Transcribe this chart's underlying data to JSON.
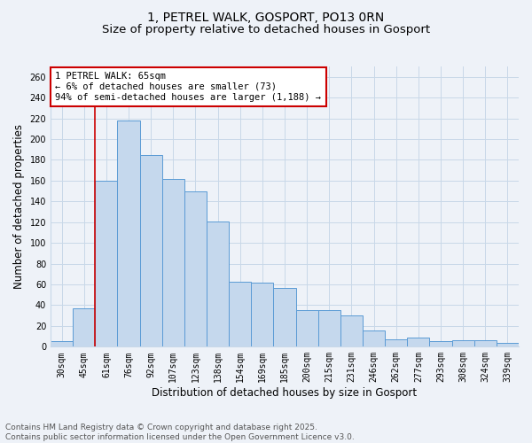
{
  "title": "1, PETREL WALK, GOSPORT, PO13 0RN",
  "subtitle": "Size of property relative to detached houses in Gosport",
  "xlabel": "Distribution of detached houses by size in Gosport",
  "ylabel": "Number of detached properties",
  "categories": [
    "30sqm",
    "45sqm",
    "61sqm",
    "76sqm",
    "92sqm",
    "107sqm",
    "123sqm",
    "138sqm",
    "154sqm",
    "169sqm",
    "185sqm",
    "200sqm",
    "215sqm",
    "231sqm",
    "246sqm",
    "262sqm",
    "277sqm",
    "293sqm",
    "308sqm",
    "324sqm",
    "339sqm"
  ],
  "values": [
    5,
    37,
    160,
    218,
    185,
    162,
    150,
    121,
    63,
    62,
    57,
    35,
    35,
    30,
    16,
    7,
    9,
    5,
    6,
    6,
    4
  ],
  "bar_color": "#c5d8ed",
  "bar_edge_color": "#5b9bd5",
  "grid_color": "#c8d8e8",
  "background_color": "#eef2f8",
  "property_bin_index": 2,
  "annotation_line1": "1 PETREL WALK: 65sqm",
  "annotation_line2": "← 6% of detached houses are smaller (73)",
  "annotation_line3": "94% of semi-detached houses are larger (1,188) →",
  "annotation_box_color": "#ffffff",
  "annotation_box_edge_color": "#cc0000",
  "vline_color": "#cc0000",
  "footer_line1": "Contains HM Land Registry data © Crown copyright and database right 2025.",
  "footer_line2": "Contains public sector information licensed under the Open Government Licence v3.0.",
  "title_fontsize": 10,
  "subtitle_fontsize": 9.5,
  "tick_fontsize": 7,
  "ylabel_fontsize": 8.5,
  "xlabel_fontsize": 8.5,
  "footer_fontsize": 6.5,
  "annotation_fontsize": 7.5,
  "ylim": [
    0,
    270
  ],
  "yticks": [
    0,
    20,
    40,
    60,
    80,
    100,
    120,
    140,
    160,
    180,
    200,
    220,
    240,
    260
  ]
}
